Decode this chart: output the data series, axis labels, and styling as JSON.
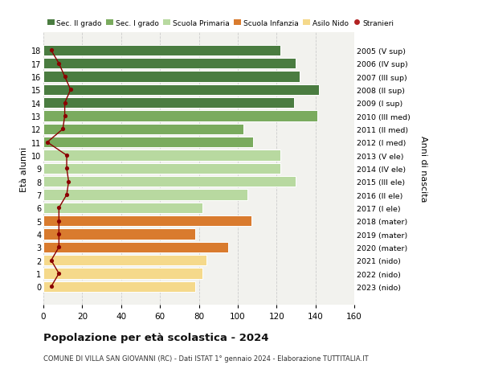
{
  "ages": [
    18,
    17,
    16,
    15,
    14,
    13,
    12,
    11,
    10,
    9,
    8,
    7,
    6,
    5,
    4,
    3,
    2,
    1,
    0
  ],
  "bar_values": [
    122,
    130,
    132,
    142,
    129,
    141,
    103,
    108,
    122,
    122,
    130,
    105,
    82,
    107,
    78,
    95,
    84,
    82,
    78
  ],
  "stranieri_values": [
    4,
    8,
    11,
    14,
    11,
    11,
    10,
    2,
    12,
    12,
    13,
    12,
    8,
    8,
    8,
    8,
    4,
    8,
    4
  ],
  "bar_colors": [
    "#4a7c40",
    "#4a7c40",
    "#4a7c40",
    "#4a7c40",
    "#4a7c40",
    "#7aab5e",
    "#7aab5e",
    "#7aab5e",
    "#b8d9a0",
    "#b8d9a0",
    "#b8d9a0",
    "#b8d9a0",
    "#b8d9a0",
    "#d97b2e",
    "#d97b2e",
    "#d97b2e",
    "#f5d98b",
    "#f5d98b",
    "#f5d98b"
  ],
  "right_labels": [
    "2005 (V sup)",
    "2006 (IV sup)",
    "2007 (III sup)",
    "2008 (II sup)",
    "2009 (I sup)",
    "2010 (III med)",
    "2011 (II med)",
    "2012 (I med)",
    "2013 (V ele)",
    "2014 (IV ele)",
    "2015 (III ele)",
    "2016 (II ele)",
    "2017 (I ele)",
    "2018 (mater)",
    "2019 (mater)",
    "2020 (mater)",
    "2021 (nido)",
    "2022 (nido)",
    "2023 (nido)"
  ],
  "legend_labels": [
    "Sec. II grado",
    "Sec. I grado",
    "Scuola Primaria",
    "Scuola Infanzia",
    "Asilo Nido",
    "Stranieri"
  ],
  "legend_colors": [
    "#4a7c40",
    "#7aab5e",
    "#b8d9a0",
    "#d97b2e",
    "#f5d98b",
    "#b22222"
  ],
  "ylabel_left": "Età alunni",
  "ylabel_right": "Anni di nascita",
  "title": "Popolazione per età scolastica - 2024",
  "subtitle": "COMUNE DI VILLA SAN GIOVANNI (RC) - Dati ISTAT 1° gennaio 2024 - Elaborazione TUTTITALIA.IT",
  "xlim": [
    0,
    160
  ],
  "xticks": [
    0,
    20,
    40,
    60,
    80,
    100,
    120,
    140,
    160
  ],
  "background_color": "#ffffff",
  "plot_bg_color": "#f2f2ee",
  "grid_color": "#cccccc",
  "stranieri_line_color": "#8b0000",
  "stranieri_dot_color": "#8b0000"
}
